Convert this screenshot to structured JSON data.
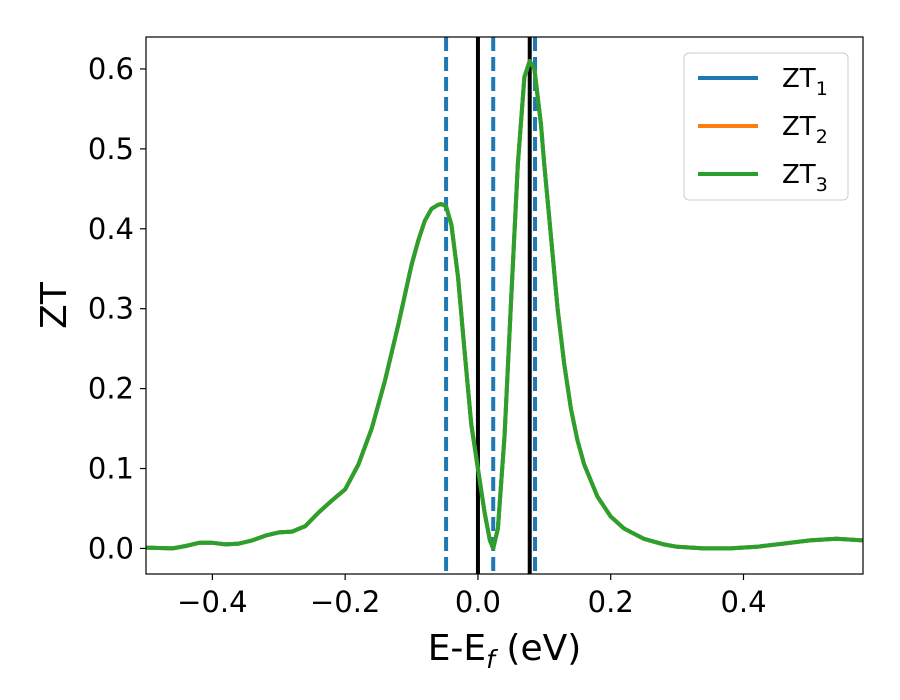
{
  "chart_data": {
    "type": "line",
    "xlabel_main": "E-E",
    "xlabel_sub": "f",
    "xlabel_unit": " (eV)",
    "ylabel": "ZT",
    "xlim": [
      -0.5,
      0.58
    ],
    "ylim": [
      -0.032,
      0.64
    ],
    "xticks": [
      -0.4,
      -0.2,
      0.0,
      0.2,
      0.4
    ],
    "xtick_labels": [
      "−0.4",
      "−0.2",
      "0.0",
      "0.2",
      "0.4"
    ],
    "yticks": [
      0.0,
      0.1,
      0.2,
      0.3,
      0.4,
      0.5,
      0.6
    ],
    "ytick_labels": [
      "0.0",
      "0.1",
      "0.2",
      "0.3",
      "0.4",
      "0.5",
      "0.6"
    ],
    "grid": false,
    "legend_position": "top-right",
    "x": [
      -0.5,
      -0.46,
      -0.44,
      -0.42,
      -0.4,
      -0.38,
      -0.36,
      -0.34,
      -0.32,
      -0.3,
      -0.28,
      -0.26,
      -0.24,
      -0.22,
      -0.2,
      -0.18,
      -0.16,
      -0.14,
      -0.12,
      -0.1,
      -0.09,
      -0.08,
      -0.07,
      -0.06,
      -0.055,
      -0.048,
      -0.04,
      -0.03,
      -0.02,
      -0.01,
      0.0,
      0.01,
      0.018,
      0.023,
      0.03,
      0.04,
      0.05,
      0.06,
      0.07,
      0.078,
      0.085,
      0.095,
      0.1,
      0.11,
      0.12,
      0.13,
      0.14,
      0.15,
      0.16,
      0.18,
      0.2,
      0.22,
      0.25,
      0.28,
      0.3,
      0.34,
      0.38,
      0.42,
      0.46,
      0.5,
      0.54,
      0.58
    ],
    "series": [
      {
        "name_main": "ZT",
        "name_sub": "1",
        "color": "#1f77b4",
        "values": [
          0.001,
          0.0,
          0.003,
          0.007,
          0.007,
          0.005,
          0.006,
          0.01,
          0.016,
          0.02,
          0.021,
          0.028,
          0.045,
          0.06,
          0.074,
          0.105,
          0.15,
          0.21,
          0.28,
          0.355,
          0.385,
          0.41,
          0.425,
          0.43,
          0.431,
          0.428,
          0.405,
          0.34,
          0.245,
          0.155,
          0.1,
          0.045,
          0.01,
          0.0,
          0.025,
          0.14,
          0.31,
          0.48,
          0.59,
          0.61,
          0.6,
          0.53,
          0.48,
          0.39,
          0.3,
          0.23,
          0.175,
          0.135,
          0.105,
          0.065,
          0.04,
          0.025,
          0.012,
          0.005,
          0.002,
          0.0,
          0.0,
          0.002,
          0.006,
          0.01,
          0.012,
          0.01
        ]
      },
      {
        "name_main": "ZT",
        "name_sub": "2",
        "color": "#ff7f0e",
        "values": [
          0.001,
          0.0,
          0.003,
          0.007,
          0.007,
          0.005,
          0.006,
          0.01,
          0.016,
          0.02,
          0.021,
          0.028,
          0.045,
          0.06,
          0.074,
          0.105,
          0.15,
          0.21,
          0.28,
          0.355,
          0.385,
          0.41,
          0.425,
          0.43,
          0.431,
          0.428,
          0.405,
          0.34,
          0.245,
          0.155,
          0.1,
          0.045,
          0.01,
          0.0,
          0.025,
          0.14,
          0.31,
          0.48,
          0.59,
          0.61,
          0.6,
          0.53,
          0.48,
          0.39,
          0.3,
          0.23,
          0.175,
          0.135,
          0.105,
          0.065,
          0.04,
          0.025,
          0.012,
          0.005,
          0.002,
          0.0,
          0.0,
          0.002,
          0.006,
          0.01,
          0.012,
          0.01
        ]
      },
      {
        "name_main": "ZT",
        "name_sub": "3",
        "color": "#2ca02c",
        "values": [
          0.001,
          0.0,
          0.003,
          0.007,
          0.007,
          0.005,
          0.006,
          0.01,
          0.016,
          0.02,
          0.021,
          0.028,
          0.045,
          0.06,
          0.074,
          0.105,
          0.15,
          0.21,
          0.28,
          0.355,
          0.385,
          0.41,
          0.425,
          0.43,
          0.431,
          0.428,
          0.405,
          0.34,
          0.245,
          0.155,
          0.1,
          0.045,
          0.01,
          0.0,
          0.025,
          0.14,
          0.31,
          0.48,
          0.59,
          0.61,
          0.6,
          0.53,
          0.48,
          0.39,
          0.3,
          0.23,
          0.175,
          0.135,
          0.105,
          0.065,
          0.04,
          0.025,
          0.012,
          0.005,
          0.002,
          0.0,
          0.0,
          0.002,
          0.006,
          0.01,
          0.012,
          0.01
        ]
      }
    ],
    "vlines": [
      {
        "x": -0.048,
        "color": "#1f77b4",
        "style": "dashed"
      },
      {
        "x": 0.023,
        "color": "#1f77b4",
        "style": "dashed"
      },
      {
        "x": 0.086,
        "color": "#1f77b4",
        "style": "dashed"
      },
      {
        "x": 0.0,
        "color": "#000000",
        "style": "solid"
      },
      {
        "x": 0.078,
        "color": "#000000",
        "style": "solid"
      }
    ]
  }
}
